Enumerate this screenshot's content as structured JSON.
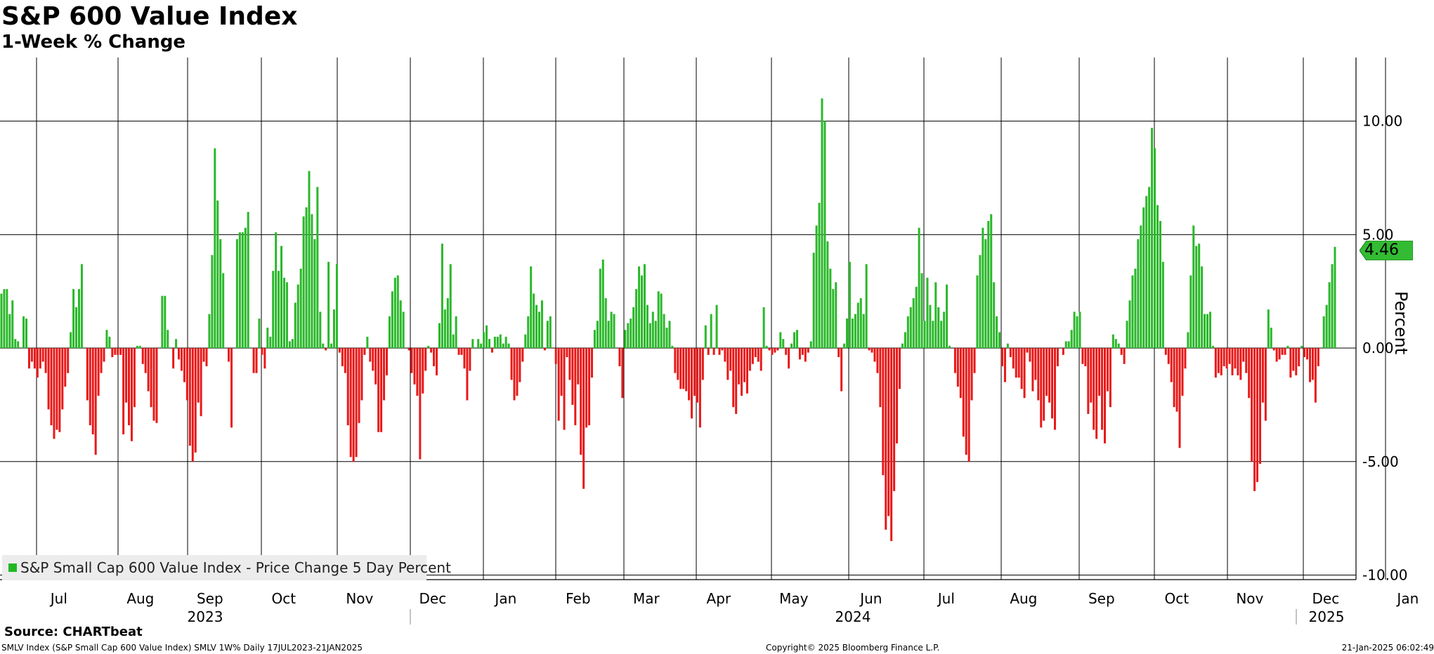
{
  "title": "S&P 600 Value Index",
  "subtitle": "1-Week % Change",
  "source": "Source: CHARTbeat",
  "footer": {
    "left": "SMLV Index (S&P Small Cap 600 Value Index) SMLV 1W% Daily 17JUL2023-21JAN2025",
    "center": "Copyright© 2025 Bloomberg Finance L.P.",
    "right": "21-Jan-2025 06:02:49"
  },
  "chart_data": {
    "type": "bar",
    "title": "S&P 600 Value Index",
    "subtitle": "1-Week % Change",
    "ylabel": "Percent",
    "ylim": [
      -10.2,
      12.8
    ],
    "yticks": [
      {
        "value": 10,
        "label": "10.00"
      },
      {
        "value": 5,
        "label": "5.00"
      },
      {
        "value": 0,
        "label": "0.00"
      },
      {
        "value": -5,
        "label": "-5.00"
      },
      {
        "value": -10,
        "label": "-10.00"
      }
    ],
    "grid": true,
    "legend_position": "bottom-left",
    "last_value": 4.46,
    "last_value_label": "4.46",
    "colors": {
      "positive": "#2ab82a",
      "negative": "#e81818",
      "tag": "#33bb33"
    },
    "months": [
      {
        "label": "Jul"
      },
      {
        "label": "Aug"
      },
      {
        "label": "Sep"
      },
      {
        "label": "Oct"
      },
      {
        "label": "Nov"
      },
      {
        "label": "Dec"
      },
      {
        "label": "Jan"
      },
      {
        "label": "Feb"
      },
      {
        "label": "Mar"
      },
      {
        "label": "Apr"
      },
      {
        "label": "May"
      },
      {
        "label": "Jun"
      },
      {
        "label": "Jul"
      },
      {
        "label": "Aug"
      },
      {
        "label": "Sep"
      },
      {
        "label": "Oct"
      },
      {
        "label": "Nov"
      },
      {
        "label": "Dec"
      },
      {
        "label": "Jan"
      }
    ],
    "years": [
      {
        "label": "2023"
      },
      {
        "label": "2024"
      },
      {
        "label": "2025"
      }
    ],
    "series": [
      {
        "name": "S&P Small Cap 600 Value Index - Price Change 5 Day Percent",
        "values": [
          2.4,
          2.6,
          2.6,
          1.5,
          2.1,
          0.4,
          0.3,
          0,
          1.4,
          1.3,
          -0.9,
          -0.6,
          -0.9,
          -1.3,
          -0.9,
          -0.6,
          -1.1,
          -2.7,
          -3.4,
          -4,
          -3.6,
          -3.7,
          -2.7,
          -1.7,
          -1.1,
          0.7,
          2.6,
          1.8,
          2.6,
          3.7,
          0,
          -2.3,
          -3.4,
          -3.8,
          -4.7,
          -2.1,
          -1.1,
          -0.6,
          0.8,
          0.5,
          -0.4,
          -0.3,
          -0.3,
          -0.3,
          -3.8,
          -2.4,
          -3.4,
          -4.1,
          -2.6,
          0.1,
          0.1,
          -0.7,
          -1.1,
          -1.9,
          -2.6,
          -3.2,
          -3.3,
          0,
          2.3,
          2.3,
          0.8,
          0,
          -0.9,
          0.4,
          -0.5,
          -1,
          -1.5,
          -2.3,
          -4.3,
          -5,
          -4.6,
          -2.4,
          -3,
          -0.6,
          -0.8,
          1.5,
          4.1,
          8.8,
          6.5,
          4.8,
          3.3,
          0,
          -0.6,
          -3.5,
          0,
          4.8,
          5.1,
          5.1,
          5.3,
          6,
          0,
          -1.1,
          -1.1,
          1.3,
          -0.3,
          -0.9,
          0.9,
          0.5,
          3.4,
          5.1,
          3.4,
          4.5,
          3.1,
          2.9,
          0.3,
          0.4,
          2,
          2.8,
          3.5,
          5.8,
          6.2,
          7.8,
          5.9,
          4.8,
          7.1,
          1.6,
          0.2,
          -0.1,
          3.8,
          0.2,
          1.7,
          3.7,
          -0.2,
          -0.8,
          -1.1,
          -3.4,
          -4.8,
          -5,
          -4.8,
          -3.3,
          -2.3,
          -0.3,
          0.5,
          -0.6,
          -1,
          -1.6,
          -3.7,
          -3.7,
          -2.3,
          -1.2,
          1.4,
          2.5,
          3.1,
          3.2,
          2.1,
          1.6,
          0,
          -0.1,
          -1.1,
          -1.6,
          -2.1,
          -4.9,
          -2,
          -1,
          0.1,
          -0.2,
          -0.8,
          -1.2,
          1.1,
          4.6,
          1.7,
          2.2,
          3.7,
          0.6,
          1.4,
          -0.3,
          -0.3,
          -0.9,
          -2.3,
          -1,
          0.4,
          0,
          0.4,
          0.2,
          0.7,
          1,
          0.4,
          -0.2,
          0.5,
          0.5,
          0.6,
          0.2,
          0.5,
          0.2,
          -1.4,
          -2.3,
          -2.1,
          -1.5,
          -0.6,
          0.6,
          1.4,
          3.6,
          2.4,
          1.9,
          1.6,
          2.1,
          -0.1,
          1.2,
          1.4,
          0,
          -0.7,
          -3.2,
          -2.1,
          -3.6,
          -0.4,
          -1.4,
          -2.5,
          -3.4,
          -1.6,
          -4.7,
          -6.2,
          -3.5,
          -3.4,
          -1.3,
          0.8,
          1.2,
          3.5,
          3.9,
          2.2,
          1.2,
          1.6,
          1.5,
          0,
          -0.8,
          -2.2,
          0.8,
          1.1,
          1.3,
          1.8,
          2.6,
          3.6,
          3.2,
          3.7,
          1.9,
          1.1,
          1.6,
          1.2,
          2.5,
          2.4,
          1.5,
          0.9,
          1.2,
          0.1,
          -1.1,
          -1.4,
          -1.8,
          -1.8,
          -1.9,
          -2.3,
          -3.1,
          -2.1,
          -2.4,
          -3.5,
          -1.4,
          1,
          -0.3,
          1.5,
          -0.3,
          1.9,
          -0.3,
          -0.1,
          -0.6,
          -1.4,
          -1,
          -2.6,
          -2.9,
          -1.6,
          -2.1,
          -1.5,
          -2,
          -1,
          -0.7,
          -0.4,
          -0.6,
          -1,
          1.8,
          0.1,
          -0.1,
          -0.3,
          -0.2,
          -0.1,
          0.7,
          0.4,
          -0.3,
          -0.9,
          0.2,
          0.7,
          0.8,
          -0.5,
          -0.3,
          -0.6,
          -0.2,
          0.3,
          4.2,
          5.4,
          6.4,
          11,
          10,
          4.7,
          3.5,
          2.6,
          2.9,
          -0.4,
          -1.9,
          0.2,
          1.3,
          3.8,
          1.3,
          1.5,
          2,
          2.2,
          1.5,
          3.7,
          -0.1,
          -0.2,
          -0.6,
          -1.1,
          -2.6,
          -5.6,
          -8,
          -7.4,
          -8.5,
          -6.3,
          -4.2,
          -1.8,
          0.2,
          0.7,
          1.4,
          1.8,
          2.2,
          2.7,
          5.3,
          3.3,
          1.2,
          3.1,
          1.9,
          1.2,
          2.9,
          1.8,
          1.2,
          1.6,
          2.8,
          0.1,
          0,
          -1.1,
          -1.7,
          -2.2,
          -3.9,
          -4.7,
          -5,
          -2.3,
          -1.1,
          3.2,
          4.1,
          5.3,
          4.8,
          5.6,
          5.9,
          2.9,
          1.4,
          0.7,
          -0.8,
          -1.5,
          0.2,
          -0.4,
          -0.9,
          -1.3,
          -1.3,
          -1.8,
          -2.2,
          -0.2,
          -0.6,
          -1.9,
          -1.4,
          -2.3,
          -3.5,
          -3.2,
          -2.1,
          -2.4,
          -3.1,
          -3.6,
          -0.8,
          0,
          -0.3,
          0.3,
          0.3,
          0.8,
          1.6,
          1.4,
          1.6,
          -0.7,
          -0.8,
          -2.9,
          -2.4,
          -3.6,
          -4,
          -2.1,
          -3.6,
          -4.2,
          -1.9,
          -2.6,
          0.6,
          0.4,
          0.2,
          -0.3,
          -0.7,
          1.2,
          2.1,
          3.2,
          3.5,
          4.8,
          5.4,
          6.2,
          6.7,
          7.1,
          9.7,
          8.8,
          6.3,
          5.6,
          3.8,
          -0.3,
          -0.7,
          -1.5,
          -2.6,
          -2.8,
          -4.4,
          -2.1,
          -0.9,
          0.7,
          3.2,
          5.4,
          4.5,
          4.6,
          3.6,
          1.5,
          1.5,
          1.6,
          0.1,
          -1.3,
          -1.1,
          -1.2,
          -0.8,
          -0.9,
          -0.7,
          -1.2,
          -0.9,
          -1.2,
          -1.4,
          -0.6,
          -1.1,
          -2.2,
          -5,
          -6.3,
          -5.9,
          -5.1,
          -2.4,
          -3.2,
          1.7,
          0.9,
          -0.1,
          -0.6,
          -0.5,
          -0.3,
          -0.3,
          0.1,
          -1.3,
          -1,
          -1.2,
          -0.8,
          0.1,
          -0.4,
          -0.5,
          -1.5,
          -1.4,
          -2.4,
          -0.8,
          0,
          1.4,
          1.9,
          2.9,
          3.7,
          4.46
        ]
      }
    ]
  }
}
